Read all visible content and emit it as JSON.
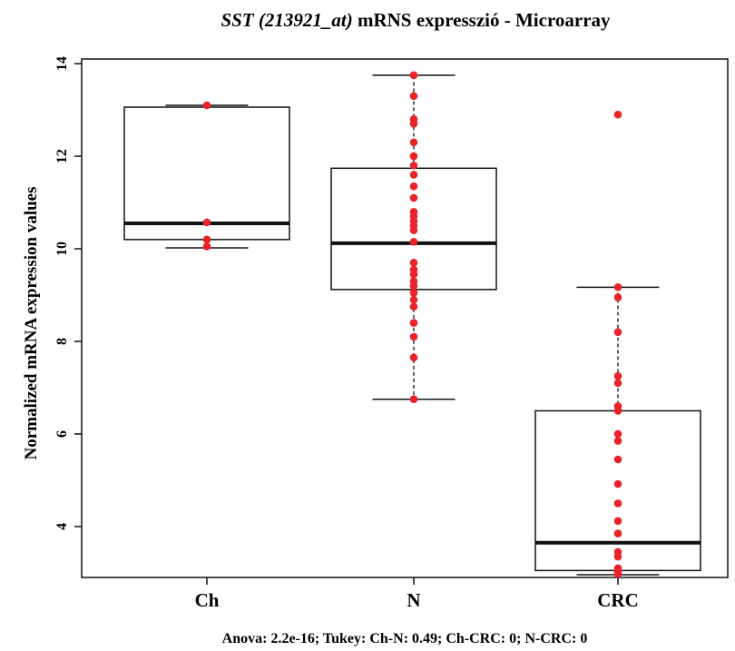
{
  "chart_data": {
    "type": "box",
    "title_italic": "SST (213921_at)",
    "title_rest": " mRNS expresszió - Microarray",
    "xlabel": "",
    "ylabel": "Normalized mRNA expression values",
    "ylim": [
      2.9,
      14.1
    ],
    "yticks": [
      4,
      6,
      8,
      10,
      12,
      14
    ],
    "categories": [
      "Ch",
      "N",
      "CRC"
    ],
    "grid": false,
    "boxes": [
      {
        "name": "Ch",
        "whisker_low": 10.02,
        "q1": 10.2,
        "median": 10.55,
        "q3": 13.06,
        "whisker_high": 13.1
      },
      {
        "name": "N",
        "whisker_low": 6.75,
        "q1": 9.12,
        "median": 10.12,
        "q3": 11.74,
        "whisker_high": 13.75
      },
      {
        "name": "CRC",
        "whisker_low": 2.96,
        "q1": 3.05,
        "median": 3.65,
        "q3": 6.5,
        "whisker_high": 9.17
      }
    ],
    "points": [
      [
        13.1,
        10.57,
        10.2,
        10.05
      ],
      [
        13.75,
        13.3,
        12.8,
        12.7,
        12.3,
        12.0,
        11.8,
        11.6,
        11.35,
        11.1,
        10.8,
        10.7,
        10.6,
        10.5,
        10.4,
        10.15,
        9.7,
        9.55,
        9.45,
        9.3,
        9.2,
        9.05,
        8.9,
        8.75,
        8.4,
        8.1,
        7.65,
        6.75
      ],
      [
        12.9,
        9.17,
        8.95,
        8.2,
        7.25,
        7.1,
        6.6,
        6.5,
        6.0,
        5.85,
        5.45,
        4.92,
        4.5,
        4.12,
        3.85,
        3.45,
        3.35,
        3.1,
        3.02,
        2.97
      ]
    ],
    "point_color": "#e8232a",
    "footnote": "Anova: 2.2e-16; Tukey: Ch-N: 0.49; Ch-CRC: 0; N-CRC: 0"
  }
}
